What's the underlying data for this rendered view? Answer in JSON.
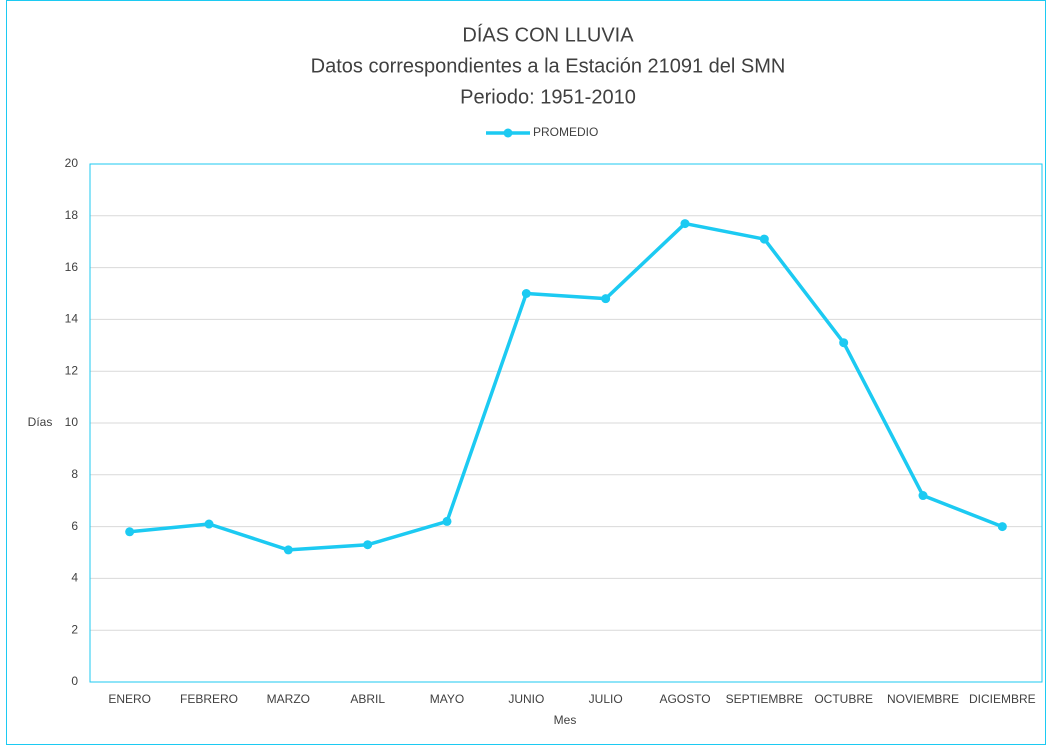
{
  "chart_data": {
    "type": "line",
    "title": "DÍAS CON LLUVIA",
    "subtitle": [
      "Datos correspondientes a la Estación 21091 del SMN",
      "Periodo: 1951-2010"
    ],
    "x_label": "Mes",
    "y_label": "Días",
    "categories": [
      "ENERO",
      "FEBRERO",
      "MARZO",
      "ABRIL",
      "MAYO",
      "JUNIO",
      "JULIO",
      "AGOSTO",
      "SEPTIEMBRE",
      "OCTUBRE",
      "NOVIEMBRE",
      "DICIEMBRE"
    ],
    "series": [
      {
        "name": "PROMEDIO",
        "color": "#1ccaf2",
        "values": [
          5.8,
          6.1,
          5.1,
          5.3,
          6.2,
          15.0,
          14.8,
          17.7,
          17.1,
          13.1,
          7.2,
          6.0
        ]
      }
    ],
    "ylim": [
      0,
      20
    ],
    "yticks": [
      0,
      2,
      4,
      6,
      8,
      10,
      12,
      14,
      16,
      18,
      20
    ],
    "grid": true,
    "legend": "top"
  }
}
